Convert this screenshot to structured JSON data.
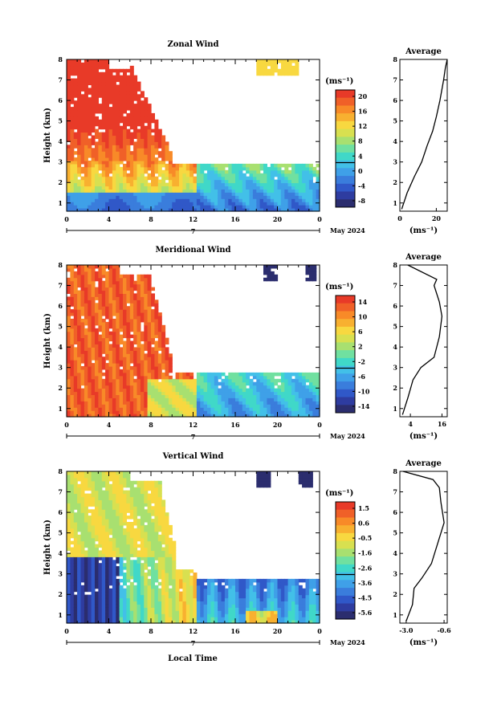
{
  "figure": {
    "shared_x_label": "Local Time",
    "x_tick_labels": [
      "0",
      "4",
      "8",
      "12",
      "16",
      "20",
      "0"
    ],
    "day_label": "7",
    "month_label": "May 2024",
    "y_axis_label": "Height (km)",
    "y_tick_labels": [
      "1",
      "2",
      "3",
      "4",
      "5",
      "6",
      "7",
      "8"
    ],
    "unit_label": "(ms⁻¹)",
    "avg_title": "Average",
    "colors": [
      "#2b2d6e",
      "#2e3ca0",
      "#3058c8",
      "#3a7ddc",
      "#3fa0e8",
      "#42c0e8",
      "#40d8c8",
      "#70e0a0",
      "#a8e070",
      "#d8e050",
      "#f8d840",
      "#f8b030",
      "#f88a28",
      "#f06028",
      "#e83a28"
    ]
  },
  "panels": [
    {
      "title": "Zonal Wind",
      "colorbar_ticks": [
        "20",
        "16",
        "12",
        "8",
        "4",
        "0",
        "-4",
        "-8"
      ],
      "avg_x_ticks": [
        "0",
        "20"
      ]
    },
    {
      "title": "Meridional Wind",
      "colorbar_ticks": [
        "14",
        "10",
        "6",
        "2",
        "-2",
        "-6",
        "-10",
        "-14"
      ],
      "avg_x_ticks": [
        "4",
        "16"
      ]
    },
    {
      "title": "Vertical Wind",
      "colorbar_ticks": [
        "1.5",
        "0.6",
        "-0.5",
        "-1.6",
        "-2.6",
        "-3.6",
        "-4.5",
        "-5.6"
      ],
      "avg_x_ticks": [
        "-3.0",
        "-0.6"
      ]
    }
  ],
  "chart_data": [
    {
      "type": "heatmap",
      "title": "Zonal Wind",
      "xlabel": "",
      "ylabel": "Height (km)",
      "colorbar_label": "(ms⁻¹)",
      "xlim_hours": [
        0,
        24
      ],
      "ylim_km": [
        0.6,
        8.0
      ],
      "clim": [
        -10,
        22
      ],
      "description_regions": [
        {
          "t": [
            0,
            12
          ],
          "z": [
            1.6,
            8.0
          ],
          "value_range": [
            14,
            22
          ]
        },
        {
          "t": [
            0,
            12
          ],
          "z": [
            0.6,
            1.6
          ],
          "value_range": [
            -6,
            0
          ]
        },
        {
          "t": [
            12.5,
            24
          ],
          "z": [
            0.6,
            2.9
          ],
          "value_range": [
            -6,
            4
          ]
        }
      ]
    },
    {
      "type": "line",
      "title": "Average",
      "xlabel": "(ms⁻¹)",
      "ylabel": "",
      "x": [
        1,
        4,
        8,
        12,
        15,
        18,
        20,
        22,
        24,
        25,
        26
      ],
      "y": [
        0.7,
        1.5,
        2.3,
        3.0,
        3.8,
        4.5,
        5.2,
        6.0,
        7.0,
        7.6,
        8.0
      ],
      "xlim": [
        0,
        26
      ],
      "ylim": [
        0.6,
        8.0
      ]
    },
    {
      "type": "heatmap",
      "title": "Meridional Wind",
      "xlabel": "",
      "ylabel": "Height (km)",
      "colorbar_label": "(ms⁻¹)",
      "xlim_hours": [
        0,
        24
      ],
      "ylim_km": [
        0.6,
        8.0
      ],
      "clim": [
        -16,
        16
      ],
      "description_regions": [
        {
          "t": [
            0,
            12
          ],
          "z": [
            1.0,
            8.0
          ],
          "value_range": [
            12,
            16
          ]
        },
        {
          "t": [
            8,
            12
          ],
          "z": [
            0.6,
            2.7
          ],
          "value_range": [
            0,
            10
          ]
        },
        {
          "t": [
            12.5,
            24
          ],
          "z": [
            0.6,
            2.8
          ],
          "value_range": [
            -10,
            -2
          ]
        }
      ]
    },
    {
      "type": "line",
      "title": "Average",
      "xlabel": "(ms⁻¹)",
      "ylabel": "",
      "x": [
        1,
        3,
        5,
        8,
        13,
        15,
        16,
        15,
        13,
        14,
        3
      ],
      "y": [
        0.7,
        1.5,
        2.4,
        3.0,
        3.5,
        4.5,
        5.5,
        6.2,
        7.0,
        7.3,
        8.0
      ],
      "xlim": [
        0,
        18
      ],
      "ylim": [
        0.6,
        8.0
      ]
    },
    {
      "type": "heatmap",
      "title": "Vertical Wind",
      "xlabel": "Local Time",
      "ylabel": "Height (km)",
      "colorbar_label": "(ms⁻¹)",
      "xlim_hours": [
        0,
        24
      ],
      "ylim_km": [
        0.6,
        8.0
      ],
      "clim": [
        -6,
        2
      ],
      "description_regions": [
        {
          "t": [
            0,
            10
          ],
          "z": [
            3.8,
            8.0
          ],
          "value_range": [
            -1.5,
            0.5
          ]
        },
        {
          "t": [
            0,
            5
          ],
          "z": [
            0.6,
            3.8
          ],
          "value_range": [
            -6,
            -4.5
          ]
        },
        {
          "t": [
            12.5,
            24
          ],
          "z": [
            0.6,
            2.8
          ],
          "value_range": [
            -4.5,
            -1
          ]
        }
      ]
    },
    {
      "type": "line",
      "title": "Average",
      "xlabel": "(ms⁻¹)",
      "ylabel": "",
      "x": [
        -3.0,
        -2.6,
        -2.5,
        -2.0,
        -1.4,
        -1.0,
        -0.6,
        -0.8,
        -0.9,
        -1.3,
        -3.2
      ],
      "y": [
        0.7,
        1.5,
        2.3,
        2.8,
        3.5,
        4.5,
        5.5,
        6.5,
        7.2,
        7.6,
        8.0
      ],
      "xlim": [
        -3.4,
        -0.4
      ],
      "ylim": [
        0.6,
        8.0
      ]
    }
  ]
}
